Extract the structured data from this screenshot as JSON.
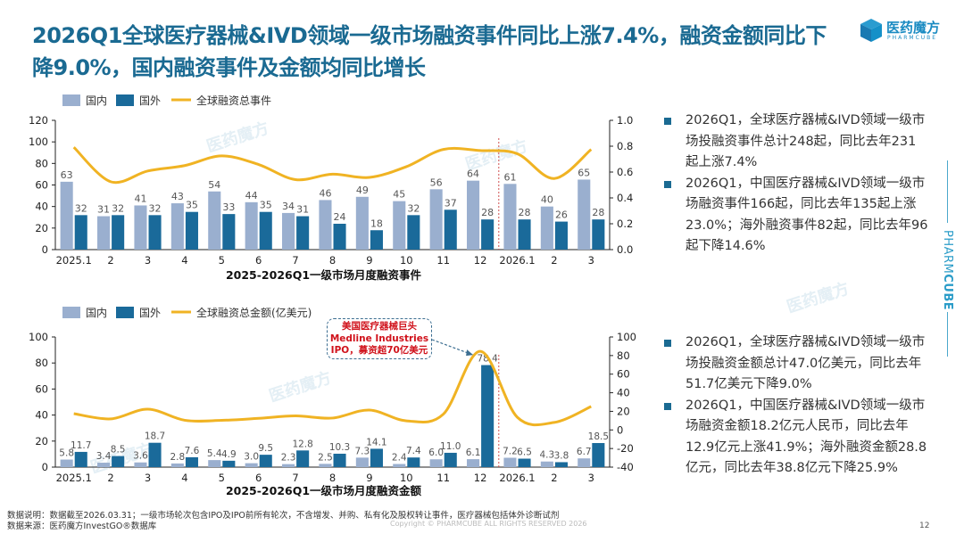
{
  "header": {
    "title": "2026Q1全球医疗器械&IVD领域一级市场融资事件同比上涨7.4%，融资金额同比下降9.0%，国内融资事件及金额均同比增长",
    "logo_text": "医药魔方",
    "logo_sub": "PHARMCUBE",
    "side_brand_light": "PHARM",
    "side_brand_bold": "CUBE"
  },
  "colors": {
    "title": "#1a6a92",
    "domestic": "#9aafcf",
    "foreign": "#1a6a9a",
    "line": "#f0b323",
    "callout_text": "#d0121b"
  },
  "chart_data": [
    {
      "type": "bar",
      "title": "2025-2026Q1一级市场月度融资事件",
      "categories": [
        "2025.1",
        "2",
        "3",
        "4",
        "5",
        "6",
        "7",
        "8",
        "9",
        "10",
        "11",
        "12",
        "2026.1",
        "2",
        "3"
      ],
      "series": [
        {
          "name": "国内",
          "type": "bar",
          "values": [
            63,
            31,
            41,
            43,
            54,
            44,
            34,
            46,
            49,
            45,
            56,
            64,
            61,
            40,
            65
          ]
        },
        {
          "name": "国外",
          "type": "bar",
          "values": [
            32,
            32,
            32,
            35,
            33,
            35,
            31,
            24,
            18,
            32,
            37,
            28,
            28,
            26,
            28
          ]
        },
        {
          "name": "全球融资总事件",
          "type": "line",
          "axis": "secondary",
          "values": [
            95,
            63,
            73,
            78,
            87,
            79,
            65,
            70,
            67,
            77,
            93,
            92,
            89,
            66,
            93
          ]
        }
      ],
      "ylim": [
        0,
        120
      ],
      "yticks": [
        "0",
        "20",
        "40",
        "60",
        "80",
        "100",
        "120"
      ],
      "y2lim": [
        0,
        1.0
      ],
      "y2ticks": [
        "0.0",
        "0.2",
        "0.4",
        "0.6",
        "0.8",
        "1.0"
      ],
      "legend": "top-left",
      "divider_after": "12"
    },
    {
      "type": "bar",
      "title": "2025-2026Q1一级市场月度融资金额",
      "categories": [
        "2025.1",
        "2",
        "3",
        "4",
        "5",
        "6",
        "7",
        "8",
        "9",
        "10",
        "11",
        "12",
        "2026.1",
        "2",
        "3"
      ],
      "series": [
        {
          "name": "国内",
          "type": "bar",
          "values": [
            5.8,
            3.4,
            3.6,
            2.8,
            5.4,
            3.0,
            2.3,
            2.5,
            7.3,
            2.4,
            6.0,
            6.1,
            7.2,
            4.3,
            6.7
          ]
        },
        {
          "name": "国外",
          "type": "bar",
          "values": [
            11.7,
            8.5,
            18.7,
            7.6,
            4.9,
            9.5,
            12.8,
            10.3,
            14.1,
            7.4,
            11.0,
            78.4,
            6.5,
            3.8,
            18.5
          ]
        },
        {
          "name": "全球融资总金额(亿美元)",
          "type": "line",
          "axis": "secondary",
          "values": [
            17.5,
            11.9,
            22.3,
            10.4,
            10.3,
            12.5,
            15.1,
            12.8,
            21.4,
            9.8,
            17.0,
            84.5,
            13.7,
            8.1,
            25.2
          ]
        }
      ],
      "ylim": [
        0,
        100
      ],
      "yticks": [
        "0",
        "20",
        "40",
        "60",
        "80",
        "100"
      ],
      "y2lim": [
        -40,
        100
      ],
      "y2ticks": [
        "-40",
        "-20",
        "0",
        "20",
        "40",
        "60",
        "80",
        "100"
      ],
      "legend": "top-left",
      "divider_after": "12",
      "annotation": {
        "lines": [
          "美国医疗器械巨头",
          "Medline Industries",
          "IPO，募资超70亿美元"
        ],
        "target_category_index": 11
      }
    }
  ],
  "bullets_top": [
    "2026Q1，全球医疗器械&IVD领域一级市场投融资事件总计248起，同比去年231起上涨7.4%",
    "2026Q1，中国医疗器械&IVD领域一级市场融资事件166起，同比去年135起上涨23.0%；海外融资事件82起，同比去年96起下降14.6%"
  ],
  "bullets_bottom": [
    "2026Q1，全球医疗器械&IVD领域一级市场投融资金额总计47.0亿美元，同比去年51.7亿美元下降9.0%",
    "2026Q1，中国医疗器械&IVD领域一级市场融资金额18.2亿元人民币，同比去年12.9亿元上涨41.9%；海外融资金额28.8亿元，同比去年38.8亿元下降25.9%"
  ],
  "footer": {
    "note": "数据说明：数据截至2026.03.31；一级市场轮次包含IPO及IPO前所有轮次，不含增发、并购、私有化及股权转让事件，医疗器械包括体外诊断试剂",
    "source": "数据来源：医药魔方InvestGO®数据库",
    "copyright": "Copyright © PHARMCUBE ALL RIGHTS RESERVED 2026",
    "page": "12"
  },
  "watermark": "医药魔方"
}
